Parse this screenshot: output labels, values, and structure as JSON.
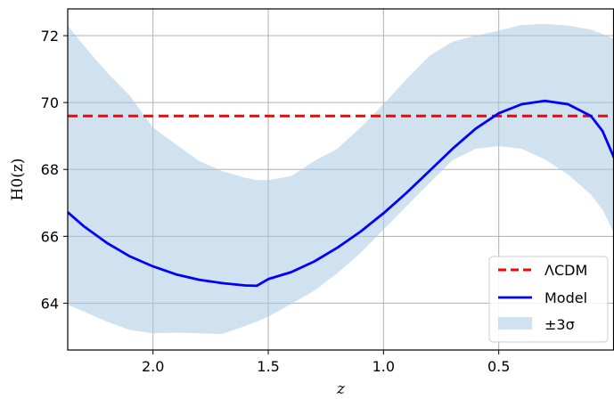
{
  "chart_data": {
    "type": "line",
    "title": "",
    "xlabel": "z",
    "ylabel": "H0(z)",
    "x_reversed": true,
    "xlim": [
      2.37,
      0.0
    ],
    "ylim": [
      62.6,
      72.8
    ],
    "xticks": [
      2.0,
      1.5,
      1.0,
      0.5
    ],
    "xtick_labels": [
      "2.0",
      "1.5",
      "1.0",
      "0.5"
    ],
    "yticks": [
      64,
      66,
      68,
      70,
      72
    ],
    "ytick_labels": [
      "64",
      "66",
      "68",
      "70",
      "72"
    ],
    "grid": true,
    "legend_position": "lower-right",
    "colors": {
      "lcdm": "#ff0000",
      "model": "#0000ff",
      "band": "#a9c8e2"
    },
    "series": [
      {
        "name": "ΛCDM",
        "style": "dashed",
        "x": [
          2.37,
          0.0
        ],
        "y": [
          69.6,
          69.6
        ]
      },
      {
        "name": "Model",
        "style": "solid",
        "x": [
          2.37,
          2.3,
          2.2,
          2.1,
          2.0,
          1.9,
          1.8,
          1.7,
          1.6,
          1.55,
          1.5,
          1.4,
          1.3,
          1.2,
          1.1,
          1.0,
          0.9,
          0.8,
          0.7,
          0.6,
          0.5,
          0.4,
          0.3,
          0.2,
          0.1,
          0.05,
          0.0
        ],
        "y": [
          66.72,
          66.3,
          65.8,
          65.4,
          65.1,
          64.86,
          64.7,
          64.6,
          64.53,
          64.52,
          64.72,
          64.93,
          65.25,
          65.66,
          66.14,
          66.69,
          67.3,
          67.96,
          68.62,
          69.22,
          69.68,
          69.95,
          70.05,
          69.95,
          69.6,
          69.15,
          68.35
        ]
      }
    ],
    "band": {
      "name": "±3σ",
      "x": [
        2.37,
        2.3,
        2.2,
        2.1,
        2.0,
        1.9,
        1.8,
        1.7,
        1.6,
        1.55,
        1.5,
        1.4,
        1.3,
        1.2,
        1.1,
        1.0,
        0.9,
        0.8,
        0.7,
        0.6,
        0.5,
        0.4,
        0.3,
        0.2,
        0.1,
        0.05,
        0.0
      ],
      "upper": [
        72.3,
        71.7,
        70.9,
        70.2,
        69.25,
        68.75,
        68.25,
        67.95,
        67.75,
        67.68,
        67.68,
        67.8,
        68.25,
        68.62,
        69.25,
        69.95,
        70.7,
        71.4,
        71.82,
        72.0,
        72.15,
        72.32,
        72.35,
        72.3,
        72.18,
        72.05,
        71.9
      ],
      "lower": [
        63.95,
        63.75,
        63.45,
        63.2,
        63.1,
        63.12,
        63.1,
        63.08,
        63.32,
        63.45,
        63.6,
        63.98,
        64.38,
        64.9,
        65.5,
        66.2,
        66.9,
        67.6,
        68.28,
        68.62,
        68.7,
        68.62,
        68.3,
        67.85,
        67.25,
        66.8,
        66.1
      ]
    }
  }
}
